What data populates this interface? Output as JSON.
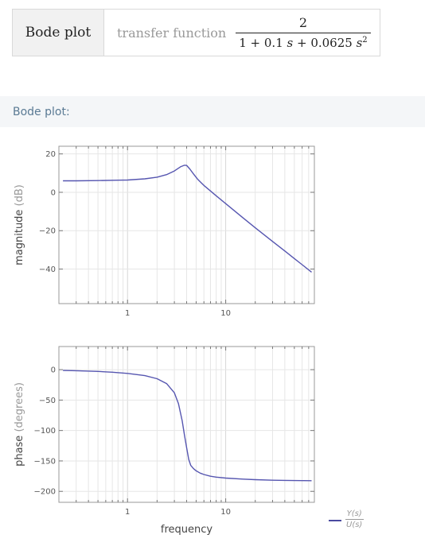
{
  "input": {
    "label": "Bode plot",
    "field": "transfer function",
    "numerator": "2",
    "denominator_parts": [
      "1 + 0.1 ",
      "s",
      " + 0.0625 ",
      "s",
      "2"
    ]
  },
  "result": {
    "title": "Bode plot:"
  },
  "legend": {
    "numerator": "Y(s)",
    "denominator": "U(s)",
    "color": "#4a4aa0"
  },
  "colors": {
    "curve": "#5656b0",
    "grid": "#e6e6e6",
    "frame": "#999999"
  },
  "chart_data": [
    {
      "type": "line",
      "title": "",
      "xlabel": "",
      "ylabel": "magnitude",
      "yunit": "(dB)",
      "xscale": "log",
      "xlim": [
        0.2,
        80
      ],
      "ylim": [
        -58,
        24
      ],
      "xticks": [
        1,
        10
      ],
      "xtick_labels": [
        "1",
        "10"
      ],
      "yticks": [
        20,
        0,
        -20,
        -40
      ],
      "ytick_labels": [
        "20",
        "0",
        "−20",
        "−40"
      ],
      "grid": true,
      "series": [
        {
          "x": [
            0.22,
            0.3,
            0.5,
            0.8,
            1,
            1.5,
            2,
            2.5,
            3,
            3.5,
            3.8,
            4,
            4.3,
            4.7,
            5.2,
            6,
            7,
            8,
            10,
            15,
            20,
            30,
            40,
            50,
            60,
            75
          ],
          "y": [
            6.0,
            6.0,
            6.1,
            6.3,
            6.4,
            7.0,
            7.9,
            9.2,
            11.1,
            13.4,
            14.1,
            14.0,
            12.2,
            9.6,
            6.7,
            3.6,
            0.7,
            -1.8,
            -5.9,
            -13.3,
            -18.5,
            -25.6,
            -30.6,
            -34.5,
            -37.7,
            -41.6
          ]
        }
      ]
    },
    {
      "type": "line",
      "title": "",
      "xlabel": "frequency",
      "ylabel": "phase",
      "yunit": "(degrees)",
      "xscale": "log",
      "xlim": [
        0.2,
        80
      ],
      "ylim": [
        -218,
        38
      ],
      "xticks": [
        1,
        10
      ],
      "xtick_labels": [
        "1",
        "10"
      ],
      "yticks": [
        0,
        -50,
        -100,
        -150,
        -200
      ],
      "ytick_labels": [
        "0",
        "−50",
        "−100",
        "−150",
        "−200"
      ],
      "grid": true,
      "series": [
        {
          "x": [
            0.22,
            0.3,
            0.5,
            0.7,
            1,
            1.5,
            2,
            2.5,
            3,
            3.3,
            3.6,
            3.8,
            4,
            4.2,
            4.4,
            4.7,
            5,
            5.5,
            6,
            7,
            8,
            10,
            15,
            20,
            30,
            40,
            60,
            75
          ],
          "y": [
            -1.3,
            -1.7,
            -2.9,
            -4.2,
            -6.1,
            -9.8,
            -14.9,
            -22.9,
            -38.0,
            -55.7,
            -84.0,
            -107.8,
            -128.1,
            -147.4,
            -157.1,
            -162.6,
            -166.3,
            -170.1,
            -172.3,
            -175.1,
            -176.6,
            -178.1,
            -179.9,
            -180.8,
            -181.7,
            -182.0,
            -182.3,
            -182.5
          ]
        }
      ]
    }
  ]
}
